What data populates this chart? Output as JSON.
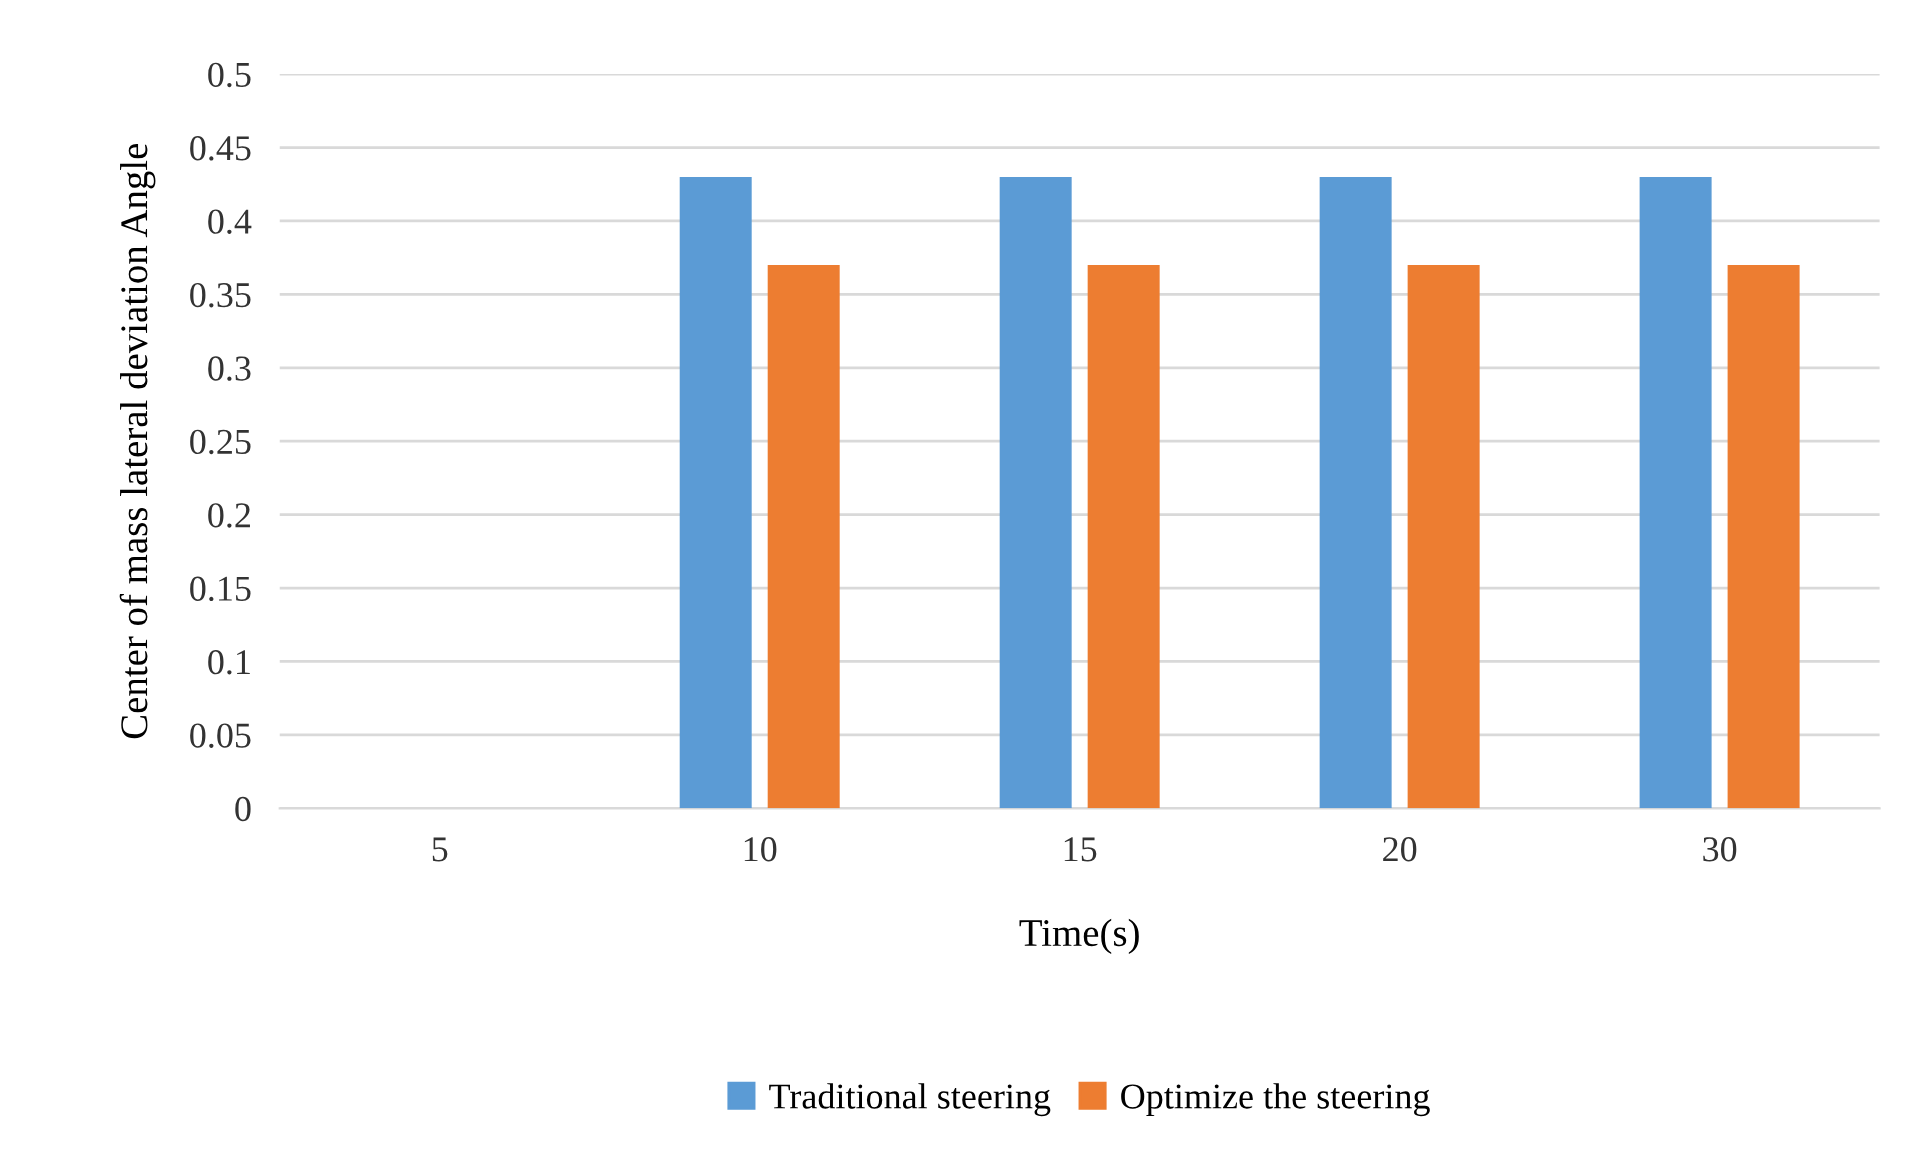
{
  "chart_data": {
    "type": "bar",
    "xlabel": "Time(s)",
    "ylabel": "Center of mass lateral deviation Angle",
    "categories": [
      "5",
      "10",
      "15",
      "20",
      "30"
    ],
    "series": [
      {
        "name": "Traditional steering",
        "color": "#5b9bd5",
        "values": [
          0,
          0.43,
          0.43,
          0.43,
          0.43
        ]
      },
      {
        "name": "Optimize the steering",
        "color": "#ed7d31",
        "values": [
          0,
          0.37,
          0.37,
          0.37,
          0.37
        ]
      }
    ],
    "ylim": [
      0,
      0.5
    ],
    "yticks": [
      0,
      0.05,
      0.1,
      0.15,
      0.2,
      0.25,
      0.3,
      0.35,
      0.4,
      0.45,
      0.5
    ],
    "grid": "y",
    "legend": "bottom"
  }
}
